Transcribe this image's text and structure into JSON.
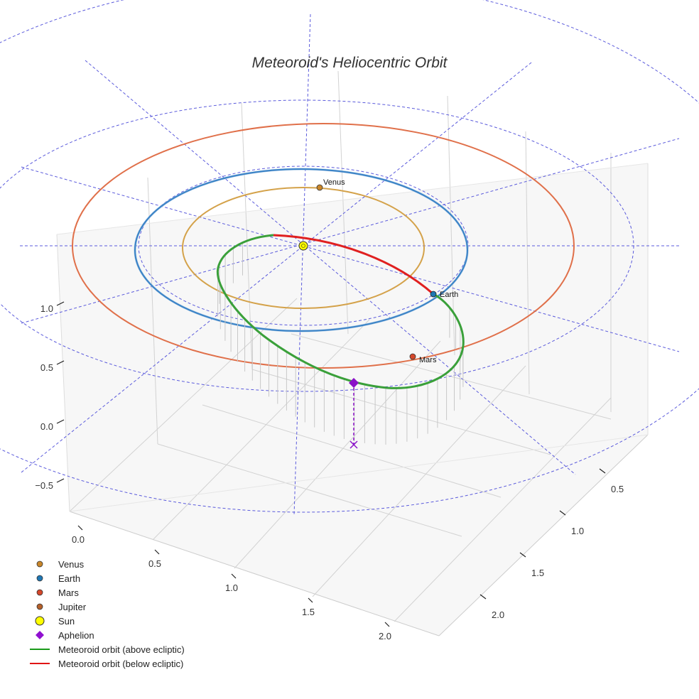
{
  "chart_data": {
    "type": "line",
    "title": "Meteoroid's Heliocentric Orbit",
    "axes": {
      "x_ticks": [
        "0.0",
        "0.5",
        "1.0",
        "1.5",
        "2.0"
      ],
      "y_ticks": [
        "0.5",
        "1.0",
        "1.5",
        "2.0"
      ],
      "z_ticks": [
        "−0.5",
        "0.0",
        "0.5",
        "1.0"
      ],
      "xlim": [
        0.0,
        2.2
      ],
      "ylim": [
        0.3,
        2.2
      ],
      "zlim": [
        -0.7,
        1.2
      ],
      "grid": true,
      "polar_grid": "ecliptic, dashed"
    },
    "planets": [
      {
        "name": "Venus",
        "orbit_radius_au": 0.72,
        "color": "#d4a24a",
        "marker_color": "#c9862a"
      },
      {
        "name": "Earth",
        "orbit_radius_au": 1.0,
        "color": "#3a82c6",
        "marker_color": "#1f77b4"
      },
      {
        "name": "Mars",
        "orbit_radius_au": 1.52,
        "color": "#e0704a",
        "marker_color": "#d4472a"
      }
    ],
    "labels": {
      "venus": "Venus",
      "earth": "Earth",
      "mars": "Mars"
    },
    "meteoroid": {
      "above_color": "#3aa03a",
      "below_color": "#e02020",
      "aphelion_color": "#8a12c8"
    },
    "legend": {
      "position": "bottom-left",
      "items": [
        {
          "label": "Venus",
          "kind": "dot",
          "color": "#c9862a"
        },
        {
          "label": "Earth",
          "kind": "dot",
          "color": "#1f77b4"
        },
        {
          "label": "Mars",
          "kind": "dot",
          "color": "#d4472a"
        },
        {
          "label": "Jupiter",
          "kind": "dot",
          "color": "#b5602a"
        },
        {
          "label": "Sun",
          "kind": "sun",
          "color": "#ffff00"
        },
        {
          "label": "Aphelion",
          "kind": "diamond",
          "color": "#9010d0"
        },
        {
          "label": "Meteoroid orbit (above ecliptic)",
          "kind": "line",
          "color": "#1a9a1a"
        },
        {
          "label": "Meteoroid orbit (below ecliptic)",
          "kind": "line",
          "color": "#e01414"
        }
      ]
    }
  }
}
